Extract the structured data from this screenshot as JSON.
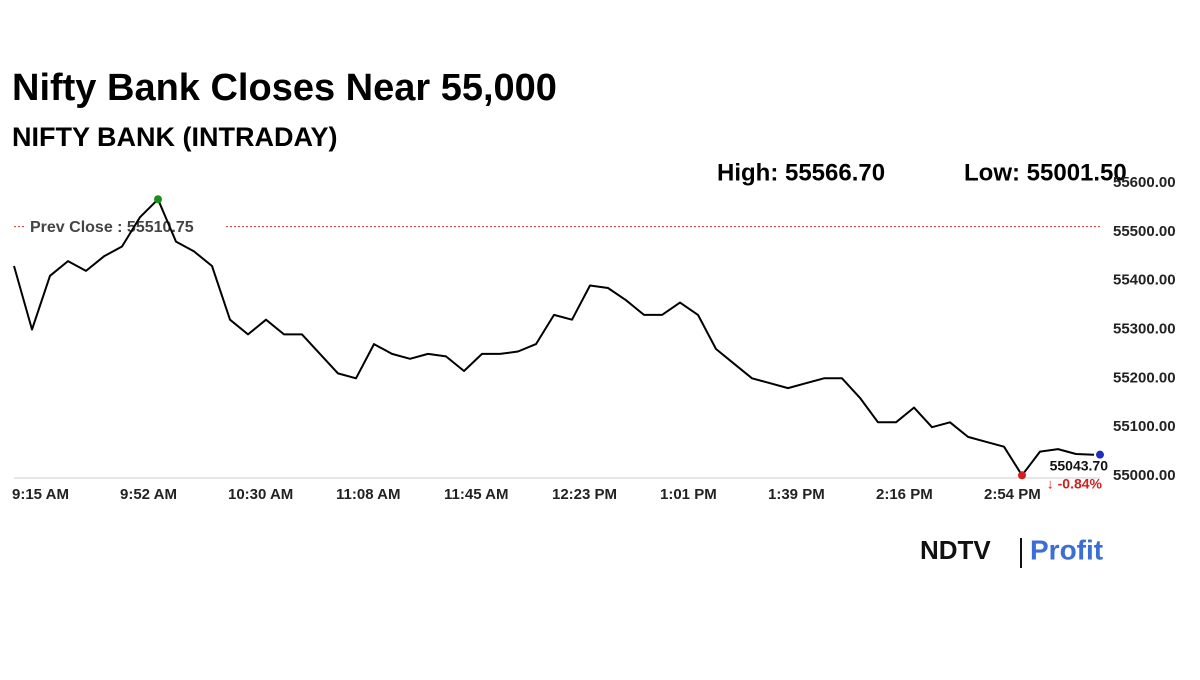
{
  "chart_data": {
    "type": "line",
    "title": "Nifty Bank Closes Near 55,000",
    "subtitle": "NIFTY BANK (INTRADAY)",
    "high_label": "High: 55566.70",
    "high": 55566.7,
    "low_label": "Low: 55001.50",
    "low": 55001.5,
    "prev_close_label": "Prev Close : 55510.75",
    "prev_close": 55510.75,
    "last_label": "55043.70",
    "last": 55043.7,
    "change_label": "↓ -0.84%",
    "change": -0.84,
    "categories": [
      "9:15 AM",
      null,
      null,
      null,
      null,
      null,
      "9:52 AM",
      null,
      null,
      null,
      null,
      null,
      "10:30 AM",
      null,
      null,
      null,
      null,
      null,
      "11:08 AM",
      null,
      null,
      null,
      null,
      null,
      "11:45 AM",
      null,
      null,
      null,
      null,
      null,
      "12:23 PM",
      null,
      null,
      null,
      null,
      null,
      "1:01 PM",
      null,
      null,
      null,
      null,
      null,
      "1:39 PM",
      null,
      null,
      null,
      null,
      null,
      "2:16 PM",
      null,
      null,
      null,
      null,
      null,
      "2:54 PM",
      null,
      null,
      null,
      null,
      null,
      null
    ],
    "values": [
      55430,
      55300,
      55410,
      55440,
      55420,
      55450,
      55470,
      55530,
      55566.7,
      55480,
      55460,
      55430,
      55320,
      55290,
      55320,
      55290,
      55290,
      55250,
      55210,
      55200,
      55270,
      55250,
      55240,
      55250,
      55245,
      55215,
      55250,
      55250,
      55255,
      55270,
      55330,
      55320,
      55390,
      55385,
      55360,
      55330,
      55330,
      55355,
      55330,
      55260,
      55230,
      55200,
      55190,
      55180,
      55190,
      55200,
      55200,
      55160,
      55110,
      55110,
      55140,
      55100,
      55110,
      55080,
      55070,
      55060,
      55001.5,
      55050,
      55055,
      55045,
      55043.7
    ],
    "color": "#000000",
    "ylim": [
      55000,
      55600
    ],
    "yticks": [
      {
        "value": 55000,
        "label": "55000.00"
      },
      {
        "value": 55100,
        "label": "55100.00"
      },
      {
        "value": 55200,
        "label": "55200.00"
      },
      {
        "value": 55300,
        "label": "55300.00"
      },
      {
        "value": 55400,
        "label": "55400.00"
      },
      {
        "value": 55500,
        "label": "55500.00"
      },
      {
        "value": 55600,
        "label": "55600.00"
      }
    ],
    "grid": false,
    "brand": "NDTV",
    "brand_product": "Profit"
  }
}
